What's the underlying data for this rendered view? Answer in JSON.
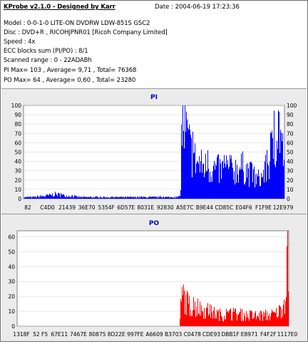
{
  "header": {
    "title": "KProbe v2.1.0 - Designed by Karr",
    "date": "Date : 2004-06-19 17:23:36"
  },
  "info_lines": [
    "Model : 0-0-1-0 LITE-ON DVDRW LDW-851S   GSC2",
    "Disc : DVD+R , RICOHJPNR01 [Ricoh Company Limited]",
    "Speed : 4x",
    "ECC blocks sum (PI/PO) : 8/1",
    "Scanned range : 0 - 22ADABh",
    "PI Max= 103 , Average= 9,71 , Total= 76368",
    "PO Max= 64 , Average= 0,60 , Total= 23280"
  ],
  "colors": {
    "pi": "#0000ff",
    "po": "#ff0000",
    "title": "#0000cc",
    "panel_bg": "#ebebeb"
  },
  "chart_data": [
    {
      "type": "bar",
      "title": "PI",
      "ylim": [
        0,
        100
      ],
      "yticks": [
        0,
        10,
        20,
        30,
        40,
        50,
        60,
        70,
        80,
        90,
        100
      ],
      "grid": true,
      "xticks": [
        "82",
        "C4D0",
        "21439",
        "36E70",
        "5354F",
        "6D57E",
        "8031E",
        "92830",
        "A5E7C",
        "B9E44",
        "CD85C",
        "E04F6",
        "F1F9E",
        "12E979"
      ],
      "profile": [
        [
          0,
          2
        ],
        [
          3,
          2
        ],
        [
          6,
          3
        ],
        [
          9,
          4
        ],
        [
          12,
          6
        ],
        [
          14,
          5
        ],
        [
          16,
          4
        ],
        [
          19,
          3
        ],
        [
          22,
          2
        ],
        [
          30,
          2
        ],
        [
          45,
          2
        ],
        [
          59,
          2
        ],
        [
          60,
          3
        ],
        [
          60.5,
          100
        ],
        [
          62,
          90
        ],
        [
          64,
          62
        ],
        [
          66,
          50
        ],
        [
          68,
          44
        ],
        [
          70,
          42
        ],
        [
          72,
          40
        ],
        [
          75,
          38
        ],
        [
          78,
          37
        ],
        [
          80,
          38
        ],
        [
          83,
          42
        ],
        [
          85,
          40
        ],
        [
          87,
          32
        ],
        [
          89,
          25
        ],
        [
          91,
          28
        ],
        [
          93,
          40
        ],
        [
          95,
          62
        ],
        [
          97,
          92
        ],
        [
          98,
          98
        ],
        [
          99,
          70
        ],
        [
          100,
          30
        ]
      ]
    },
    {
      "type": "bar",
      "title": "PO",
      "ylim": [
        0,
        64
      ],
      "yticks": [
        0,
        10,
        20,
        30,
        40,
        50,
        60
      ],
      "grid": true,
      "xticks": [
        "1318F",
        "52 F5",
        "67E11",
        "7467E",
        "80875",
        "8D22E",
        "997FE",
        "A6609",
        "B3703",
        "C0478",
        "CDE93",
        "DBB1F",
        "E8971",
        "F4F2F",
        "1117E0"
      ],
      "profile": [
        [
          0,
          0
        ],
        [
          59,
          0
        ],
        [
          59.6,
          0
        ],
        [
          60,
          14
        ],
        [
          61,
          28
        ],
        [
          62,
          20
        ],
        [
          64,
          16
        ],
        [
          68,
          14
        ],
        [
          72,
          11
        ],
        [
          76,
          9
        ],
        [
          80,
          10
        ],
        [
          84,
          9
        ],
        [
          88,
          8
        ],
        [
          92,
          9
        ],
        [
          95,
          10
        ],
        [
          97,
          14
        ],
        [
          98.5,
          22
        ],
        [
          99.3,
          62
        ],
        [
          100,
          30
        ]
      ]
    }
  ]
}
